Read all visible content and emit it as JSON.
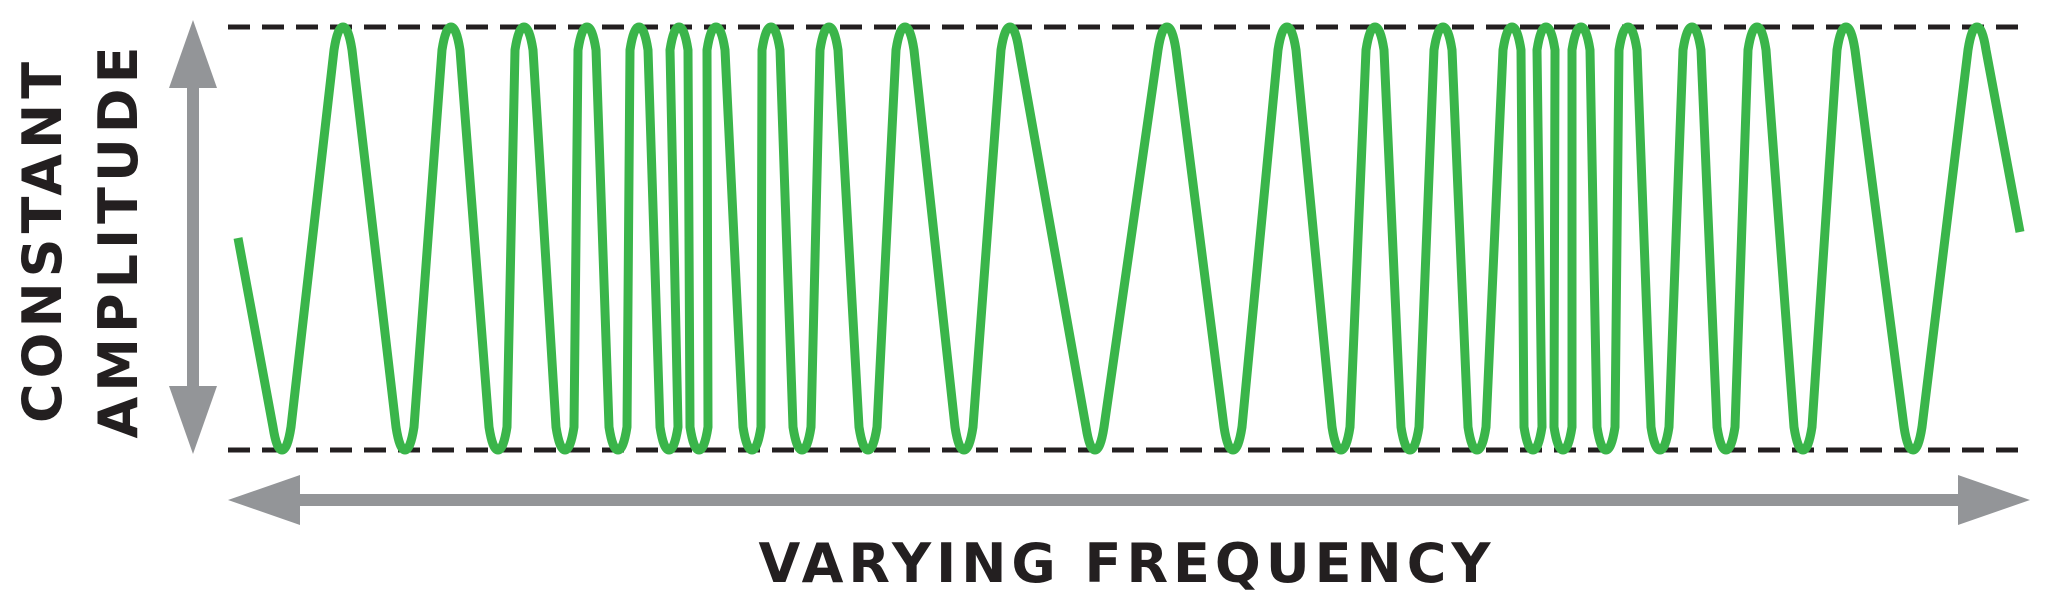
{
  "diagram": {
    "vertical_label_line1": "CONSTANT",
    "vertical_label_line2": "AMPLITUDE",
    "horizontal_label": "VARYING FREQUENCY"
  },
  "colors": {
    "wave": "#3ab54a",
    "arrows": "#939598",
    "dashed_lines": "#231f20",
    "text": "#231f20"
  }
}
